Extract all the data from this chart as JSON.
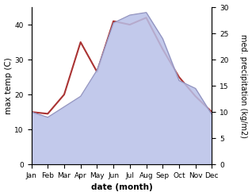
{
  "months": [
    "Jan",
    "Feb",
    "Mar",
    "Apr",
    "May",
    "Jun",
    "Jul",
    "Aug",
    "Sep",
    "Oct",
    "Nov",
    "Dec"
  ],
  "max_temp": [
    15.0,
    14.5,
    20.0,
    35.0,
    26.5,
    41.0,
    40.0,
    42.0,
    33.0,
    25.0,
    19.5,
    15.0
  ],
  "precipitation": [
    10.0,
    9.0,
    11.0,
    13.0,
    18.0,
    27.0,
    28.5,
    29.0,
    24.0,
    16.0,
    14.5,
    9.5
  ],
  "temp_color": "#aa3333",
  "precip_fill_color": "#b8c0e8",
  "precip_fill_alpha": 0.85,
  "precip_line_color": "#9090bb",
  "ylabel_left": "max temp (C)",
  "ylabel_right": "med. precipitation (kg/m2)",
  "xlabel": "date (month)",
  "ylim_left": [
    0,
    45
  ],
  "ylim_right": [
    0,
    30
  ],
  "yticks_left": [
    0,
    10,
    20,
    30,
    40
  ],
  "yticks_right": [
    0,
    5,
    10,
    15,
    20,
    25,
    30
  ],
  "bg_color": "#ffffff",
  "label_fontsize": 7.5,
  "tick_fontsize": 6.5
}
